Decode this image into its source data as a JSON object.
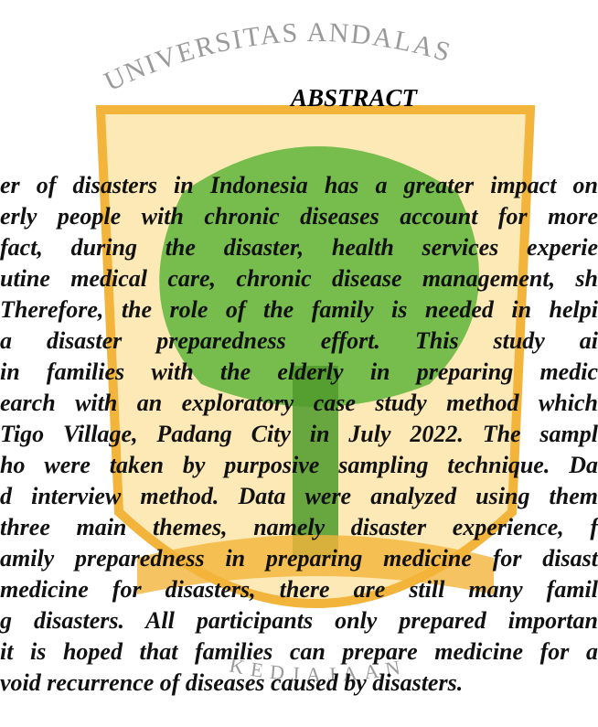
{
  "watermark": {
    "top": "UNIVERSITAS ANDALAS",
    "bottom": "KEDJAJAAN"
  },
  "title": "ABSTRACT",
  "lines": [
    "er of disasters in Indonesia has a greater impact on",
    "erly people with chronic diseases account for more",
    "fact, during the disaster, health services experie",
    "utine medical care, chronic disease management, sh",
    "Therefore, the role of the family is needed in helpi",
    "a disaster preparedness effort. This study ai",
    "in families with the elderly in preparing medic",
    "earch with an exploratory case study method which",
    "Tigo Village, Padang City in July 2022. The sampl",
    "ho were taken by purposive sampling technique. Da",
    "d interview method. Data were analyzed using them",
    "three main themes, namely disaster experience, f",
    "amily preparedness in preparing medicine for disast",
    "medicine for disasters, there are still many famil",
    "g disasters. All participants only prepared importan",
    "it is hoped that families can prepare medicine for a",
    "void recurrence of diseases caused by disasters."
  ]
}
